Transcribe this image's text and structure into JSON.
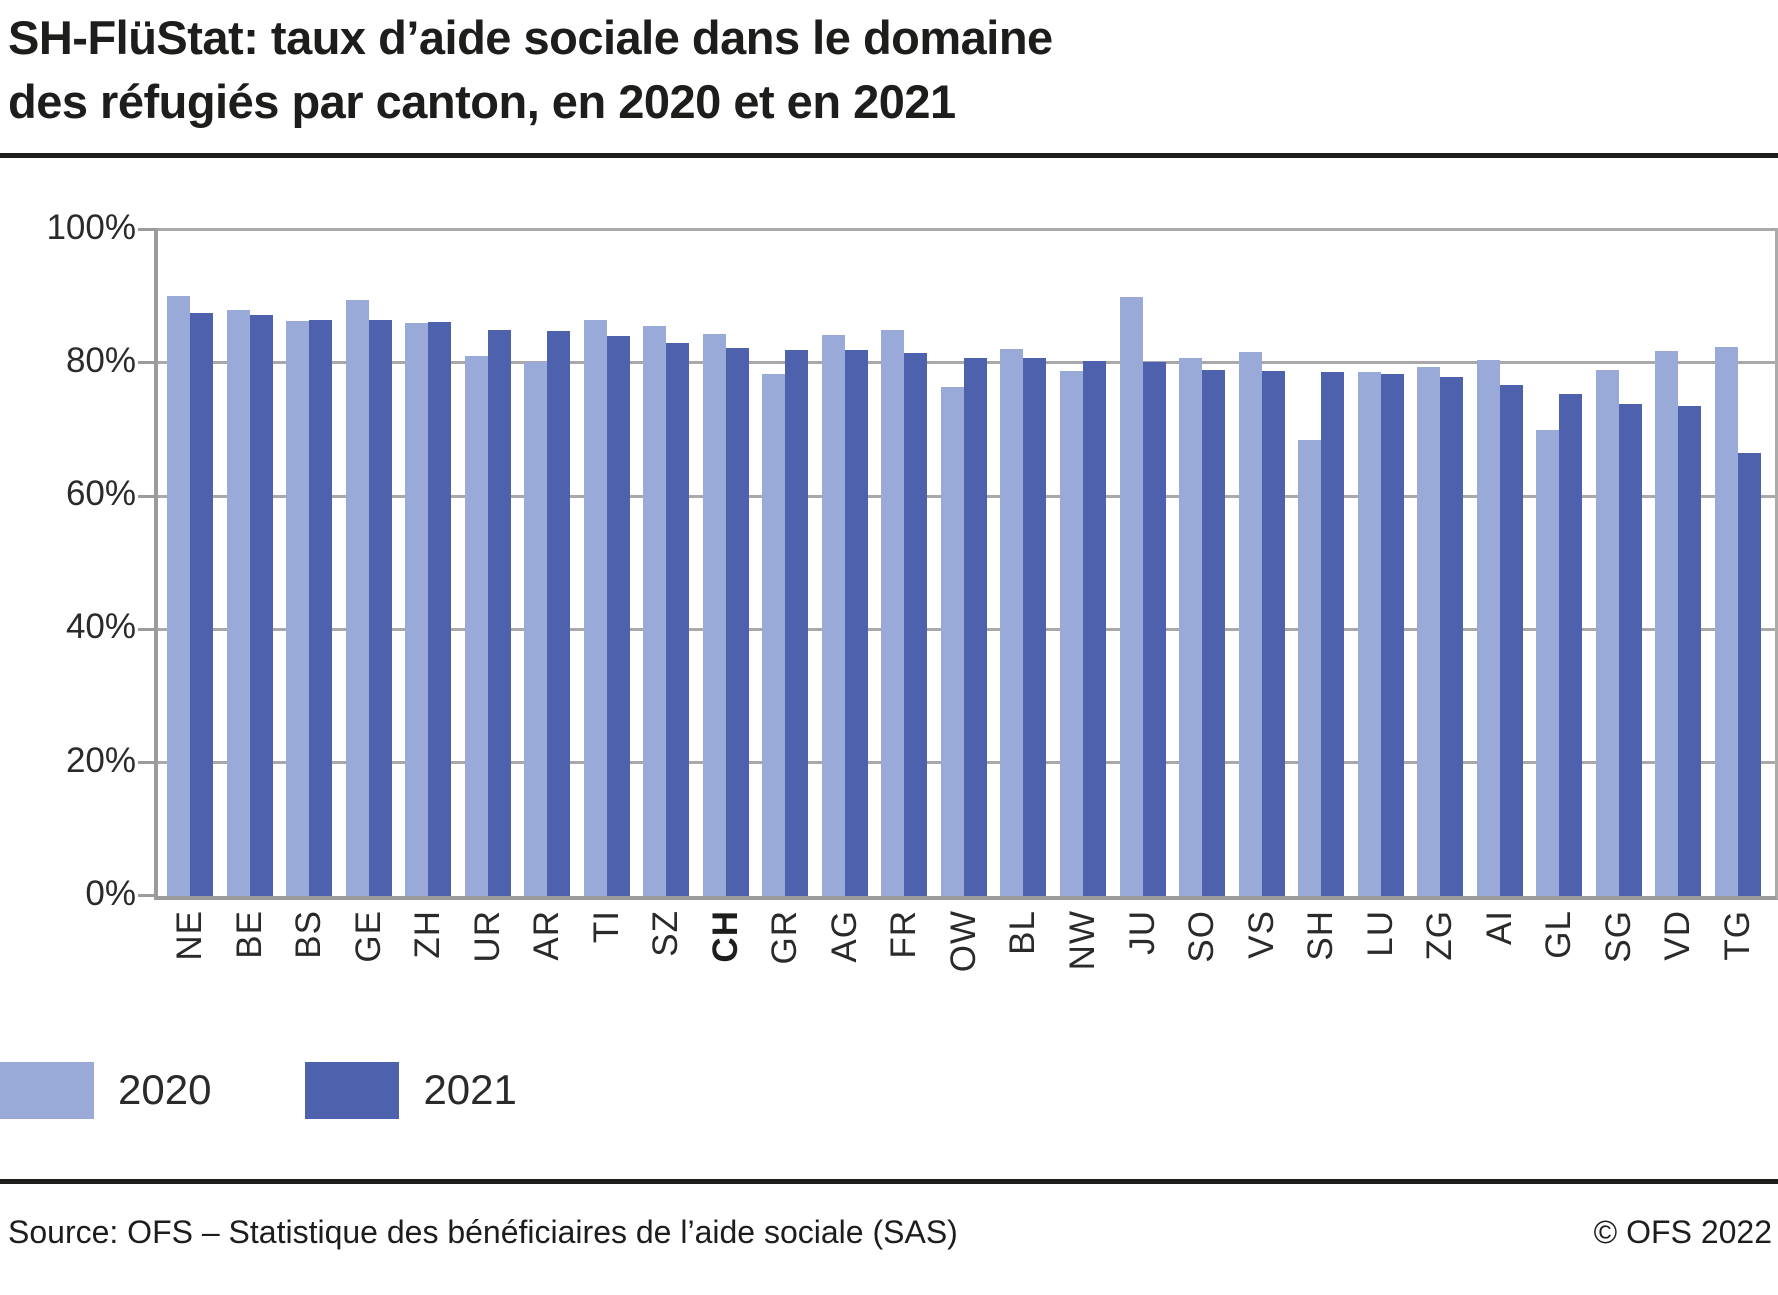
{
  "title": {
    "line1": "SH-FlüStat: taux d’aide sociale dans le domaine",
    "line2": "des réfugiés par canton, en 2020 et en 2021"
  },
  "chart_data": {
    "type": "bar",
    "title": "SH-FlüStat: taux d’aide sociale dans le domaine des réfugiés par canton, en 2020 et en 2021",
    "categories": [
      "NE",
      "BE",
      "BS",
      "GE",
      "ZH",
      "UR",
      "AR",
      "TI",
      "SZ",
      "CH",
      "GR",
      "AG",
      "FR",
      "OW",
      "BL",
      "NW",
      "JU",
      "SO",
      "VS",
      "SH",
      "LU",
      "ZG",
      "AI",
      "GL",
      "SG",
      "VD",
      "TG"
    ],
    "bold_category": "CH",
    "series": [
      {
        "name": "2020",
        "color": "#9aaad8",
        "values": [
          90.0,
          88.0,
          86.3,
          89.5,
          86.0,
          81.0,
          80.2,
          86.4,
          85.5,
          84.3,
          78.4,
          84.2,
          84.9,
          76.4,
          82.1,
          78.8,
          89.9,
          80.7,
          81.7,
          68.4,
          78.6,
          79.4,
          80.5,
          70.0,
          78.9,
          81.8,
          82.4
        ]
      },
      {
        "name": "2021",
        "color": "#4d61ac",
        "values": [
          87.5,
          87.2,
          86.5,
          86.4,
          86.2,
          85.0,
          84.8,
          84.0,
          83.0,
          82.3,
          82.0,
          81.9,
          81.5,
          80.7,
          80.7,
          80.3,
          80.1,
          79.0,
          78.8,
          78.6,
          78.4,
          77.9,
          76.7,
          75.4,
          73.8,
          73.5,
          66.5
        ]
      }
    ],
    "yticks": [
      0,
      20,
      40,
      60,
      80,
      100
    ],
    "ytick_suffix": "%",
    "ylim": [
      0,
      100
    ],
    "grid": true,
    "legend_position": "bottom-left"
  },
  "legend": {
    "items": [
      {
        "label": "2020",
        "color": "#9aaad8"
      },
      {
        "label": "2021",
        "color": "#4d61ac"
      }
    ]
  },
  "footer": {
    "source": "Source: OFS – Statistique des bénéficiaires de l’aide sociale (SAS)",
    "copyright": "© OFS 2022"
  },
  "colors": {
    "bar_2020": "#9aaad8",
    "bar_2021": "#4d61ac",
    "grid": "#a9a9a9",
    "axis": "#9b9b9b",
    "text": "#1d1d1b"
  }
}
